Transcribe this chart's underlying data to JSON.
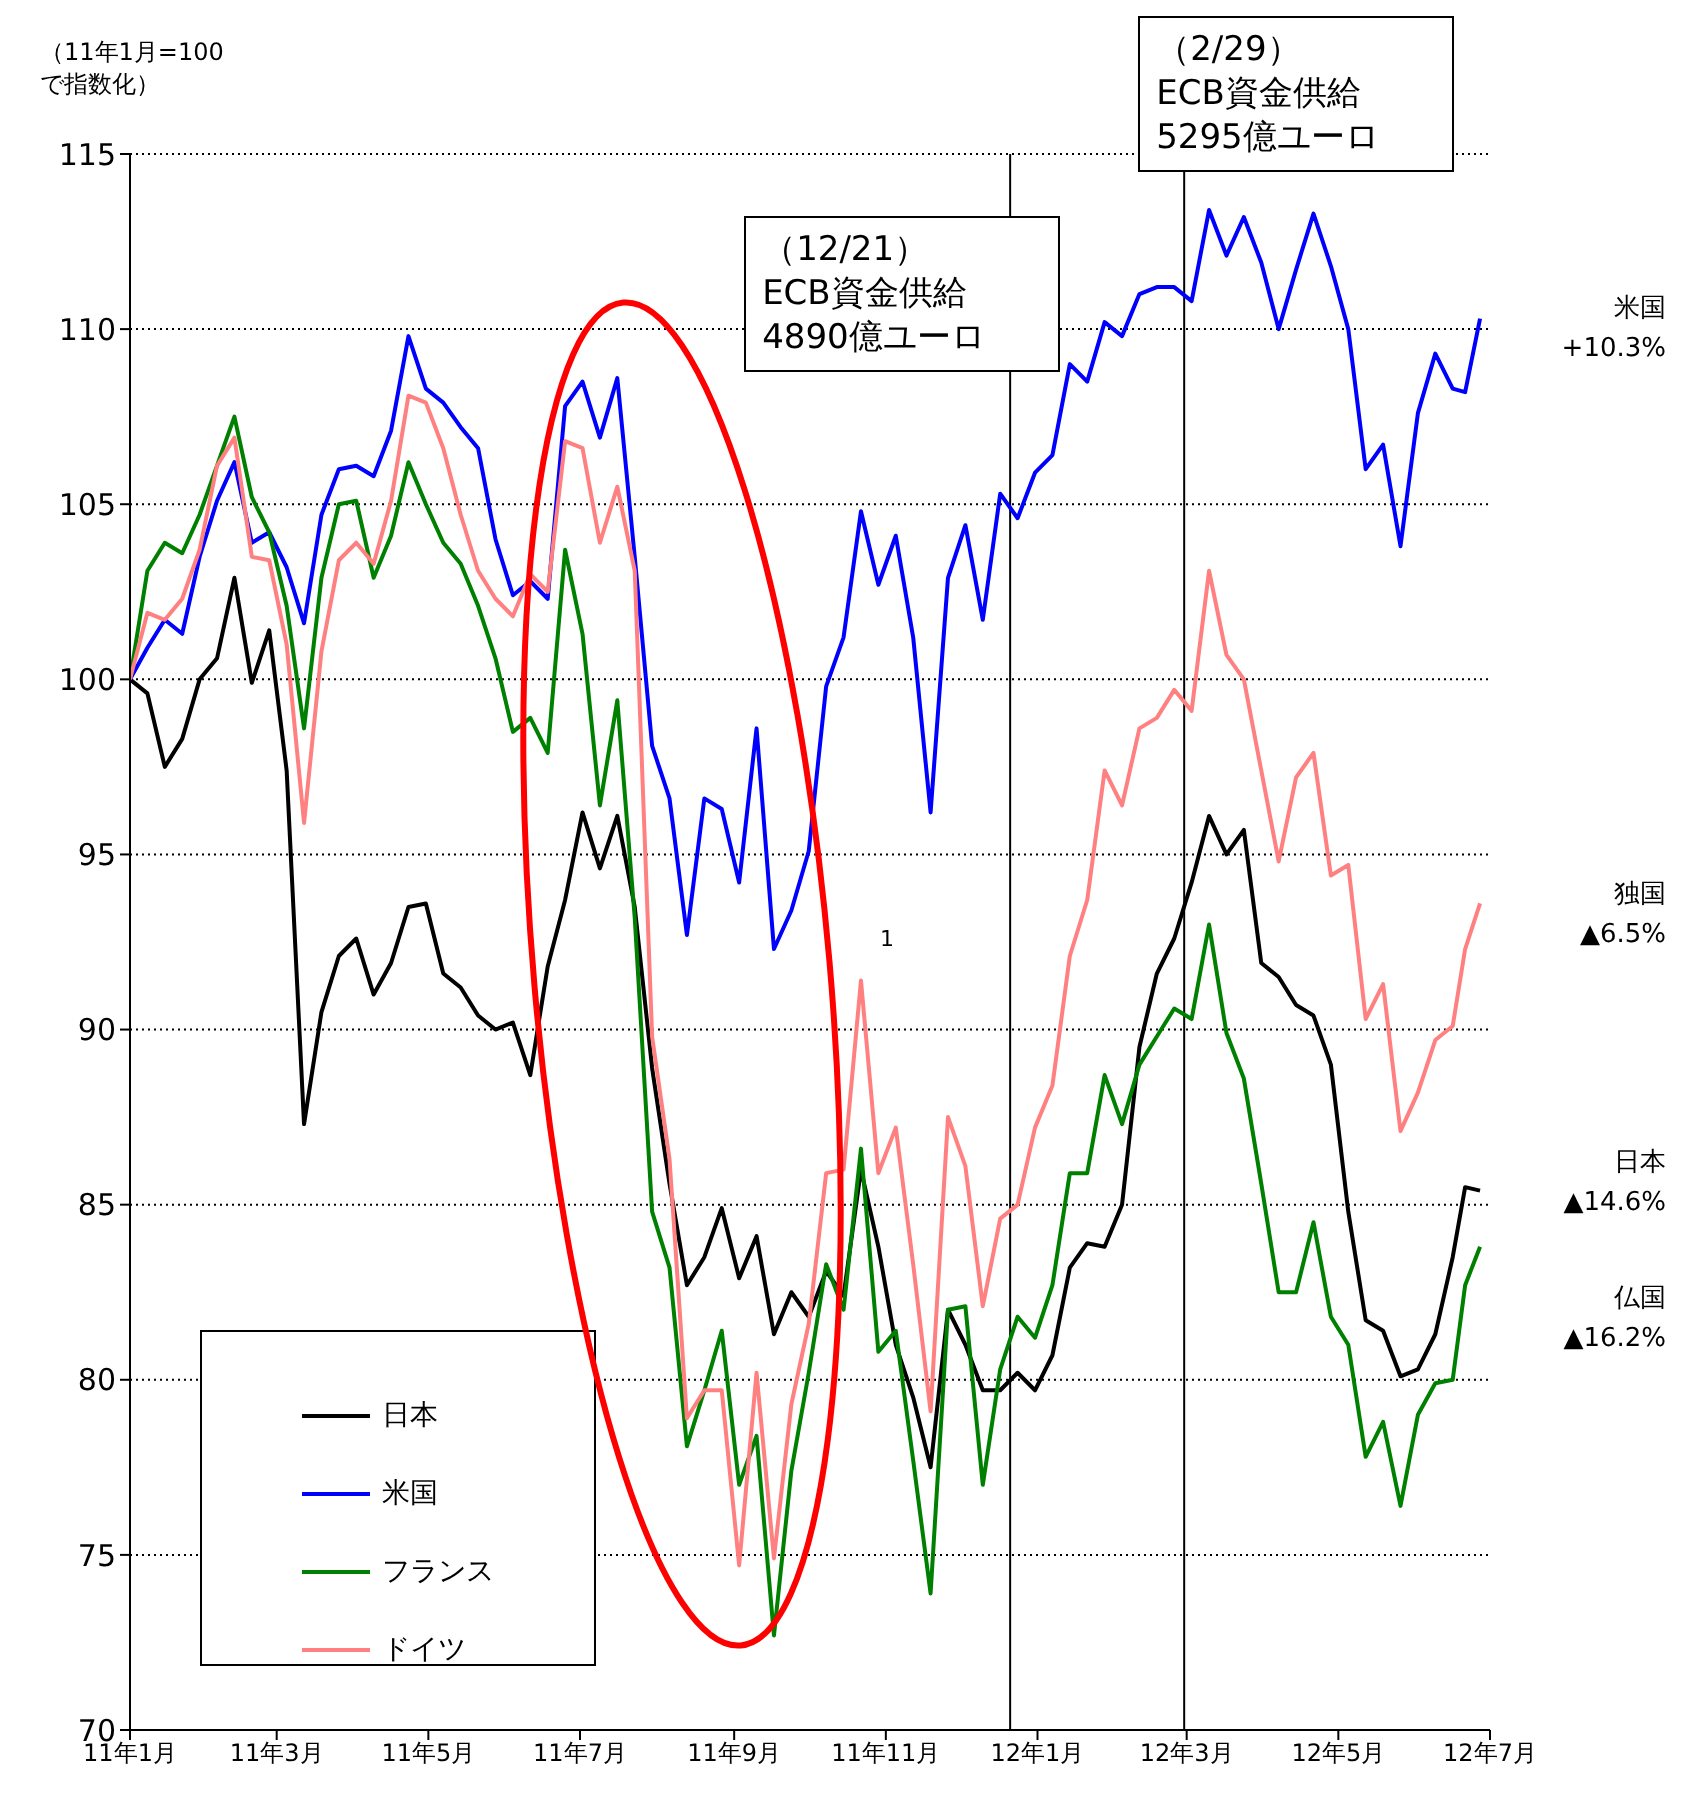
{
  "chart_data": {
    "type": "line",
    "ylabel": "（11年1月=100\nで指数化）",
    "x": [
      "2011-01-01",
      "2011-01-08",
      "2011-01-15",
      "2011-01-22",
      "2011-01-29",
      "2011-02-05",
      "2011-02-12",
      "2011-02-19",
      "2011-02-26",
      "2011-03-05",
      "2011-03-12",
      "2011-03-19",
      "2011-03-26",
      "2011-04-02",
      "2011-04-09",
      "2011-04-16",
      "2011-04-23",
      "2011-04-30",
      "2011-05-07",
      "2011-05-14",
      "2011-05-21",
      "2011-05-28",
      "2011-06-04",
      "2011-06-11",
      "2011-06-18",
      "2011-06-25",
      "2011-07-02",
      "2011-07-09",
      "2011-07-16",
      "2011-07-23",
      "2011-07-30",
      "2011-08-06",
      "2011-08-13",
      "2011-08-20",
      "2011-08-27",
      "2011-09-03",
      "2011-09-10",
      "2011-09-17",
      "2011-09-24",
      "2011-10-01",
      "2011-10-08",
      "2011-10-15",
      "2011-10-22",
      "2011-10-29",
      "2011-11-05",
      "2011-11-12",
      "2011-11-19",
      "2011-11-26",
      "2011-12-03",
      "2011-12-10",
      "2011-12-17",
      "2011-12-24",
      "2011-12-31",
      "2012-01-07",
      "2012-01-14",
      "2012-01-21",
      "2012-01-28",
      "2012-02-04",
      "2012-02-11",
      "2012-02-18",
      "2012-02-25",
      "2012-03-03",
      "2012-03-10",
      "2012-03-17",
      "2012-03-24",
      "2012-03-31",
      "2012-04-07",
      "2012-04-14",
      "2012-04-21",
      "2012-04-28",
      "2012-05-05",
      "2012-05-12",
      "2012-05-19",
      "2012-05-26",
      "2012-06-02",
      "2012-06-09",
      "2012-06-16",
      "2012-06-21",
      "2012-06-27"
    ],
    "series": [
      {
        "name": "日本",
        "color": "#000000",
        "values": [
          100,
          99.6,
          97.5,
          98.3,
          100.0,
          100.6,
          102.9,
          99.9,
          101.4,
          97.4,
          87.3,
          90.5,
          92.1,
          92.6,
          91.0,
          91.9,
          93.5,
          93.6,
          91.6,
          91.2,
          90.4,
          90.0,
          90.2,
          88.7,
          91.8,
          93.7,
          96.2,
          94.6,
          96.1,
          93.5,
          88.9,
          85.6,
          82.7,
          83.5,
          84.9,
          82.9,
          84.1,
          81.3,
          82.5,
          81.8,
          83.1,
          82.4,
          86.0,
          83.8,
          81.0,
          79.5,
          77.5,
          82.0,
          81.0,
          79.7,
          79.7,
          80.2,
          79.7,
          80.7,
          83.2,
          83.9,
          83.8,
          85.0,
          89.5,
          91.6,
          92.6,
          94.2,
          96.1,
          95.0,
          95.7,
          91.9,
          91.5,
          90.7,
          90.4,
          89.0,
          84.8,
          81.7,
          81.4,
          80.1,
          80.3,
          81.3,
          83.5,
          85.5,
          85.4
        ]
      },
      {
        "name": "米国",
        "color": "#0000ff",
        "values": [
          100,
          100.9,
          101.7,
          101.3,
          103.5,
          105.1,
          106.2,
          103.9,
          104.2,
          103.2,
          101.6,
          104.7,
          106.0,
          106.1,
          105.8,
          107.1,
          109.8,
          108.3,
          107.9,
          107.2,
          106.6,
          104.0,
          102.4,
          102.8,
          102.3,
          107.8,
          108.5,
          106.9,
          108.6,
          103.5,
          98.1,
          96.6,
          92.7,
          96.6,
          96.3,
          94.2,
          98.6,
          92.3,
          93.4,
          95.1,
          99.8,
          101.2,
          104.8,
          102.7,
          104.1,
          101.2,
          96.2,
          102.9,
          104.4,
          101.7,
          105.3,
          104.6,
          105.9,
          106.4,
          109.0,
          108.5,
          110.2,
          109.8,
          111.0,
          111.2,
          111.2,
          110.8,
          113.4,
          112.1,
          113.2,
          111.9,
          110.0,
          111.7,
          113.3,
          111.8,
          110.0,
          106.0,
          106.7,
          103.8,
          107.6,
          109.3,
          108.3,
          108.2,
          110.3
        ]
      },
      {
        "name": "フランス",
        "color": "#008000",
        "values": [
          100,
          103.1,
          103.9,
          103.6,
          104.7,
          106.1,
          107.5,
          105.2,
          104.2,
          102.1,
          98.6,
          102.9,
          105.0,
          105.1,
          102.9,
          104.1,
          106.2,
          105.0,
          103.9,
          103.3,
          102.1,
          100.6,
          98.5,
          98.9,
          97.9,
          103.7,
          101.3,
          96.4,
          99.4,
          93.2,
          84.8,
          83.2,
          78.1,
          79.7,
          81.4,
          77.0,
          78.4,
          72.7,
          77.4,
          80.2,
          83.3,
          82.0,
          86.6,
          80.8,
          81.4,
          77.7,
          73.9,
          82.0,
          82.1,
          77.0,
          80.3,
          81.8,
          81.2,
          82.7,
          85.9,
          85.9,
          88.7,
          87.3,
          89.0,
          89.8,
          90.6,
          90.3,
          93.0,
          89.9,
          88.6,
          85.6,
          82.5,
          82.5,
          84.5,
          81.8,
          81.0,
          77.8,
          78.8,
          76.4,
          79.0,
          79.9,
          80.0,
          82.7,
          83.8
        ]
      },
      {
        "name": "ドイツ",
        "color": "#ff8080",
        "values": [
          100,
          101.9,
          101.7,
          102.3,
          103.7,
          106.1,
          106.9,
          103.5,
          103.4,
          101.0,
          95.9,
          100.8,
          103.4,
          103.9,
          103.3,
          105.1,
          108.1,
          107.9,
          106.6,
          104.7,
          103.1,
          102.3,
          101.8,
          103.0,
          102.5,
          106.8,
          106.6,
          103.9,
          105.5,
          103.1,
          89.8,
          86.3,
          78.9,
          79.7,
          79.7,
          74.7,
          80.2,
          74.9,
          79.3,
          81.6,
          85.9,
          86.0,
          91.4,
          85.9,
          87.2,
          83.3,
          79.1,
          87.5,
          86.1,
          82.1,
          84.6,
          85.0,
          87.2,
          88.4,
          92.1,
          93.7,
          97.4,
          96.4,
          98.6,
          98.9,
          99.7,
          99.1,
          103.1,
          100.7,
          100.0,
          97.4,
          94.8,
          97.2,
          97.9,
          94.4,
          94.7,
          90.3,
          91.3,
          87.1,
          88.2,
          89.7,
          90.1,
          92.3,
          93.6
        ]
      }
    ],
    "xlim": [
      "2011-01-01",
      "2012-07-01"
    ],
    "xticks": [
      {
        "value": "2011-01",
        "label": "11年1月"
      },
      {
        "value": "2011-03",
        "label": "11年3月"
      },
      {
        "value": "2011-05",
        "label": "11年5月"
      },
      {
        "value": "2011-07",
        "label": "11年7月"
      },
      {
        "value": "2011-09",
        "label": "11年9月"
      },
      {
        "value": "2011-11",
        "label": "11年11月"
      },
      {
        "value": "2012-01",
        "label": "12年1月"
      },
      {
        "value": "2012-03",
        "label": "12年3月"
      },
      {
        "value": "2012-05",
        "label": "12年5月"
      },
      {
        "value": "2012-07",
        "label": "12年7月"
      }
    ],
    "ylim": [
      70,
      115
    ],
    "yticks": [
      70,
      75,
      80,
      85,
      90,
      95,
      100,
      105,
      110,
      115
    ],
    "grid": "y",
    "legend": "bottom left",
    "ref_lines": [
      {
        "axis": "x",
        "value": "2011-12-21",
        "label": "（12/21）\nECB資金供給\n4890億ユーロ",
        "color": "#000000"
      },
      {
        "axis": "x",
        "value": "2012-02-29",
        "label": "（2/29）\nECB資金供給\n5295億ユーロ",
        "color": "#000000"
      }
    ],
    "annotations": [
      "1",
      "米国\n+10.3%",
      "独国\n▲6.5%",
      "日本\n▲14.6%",
      "仏国\n▲16.2%"
    ]
  }
}
